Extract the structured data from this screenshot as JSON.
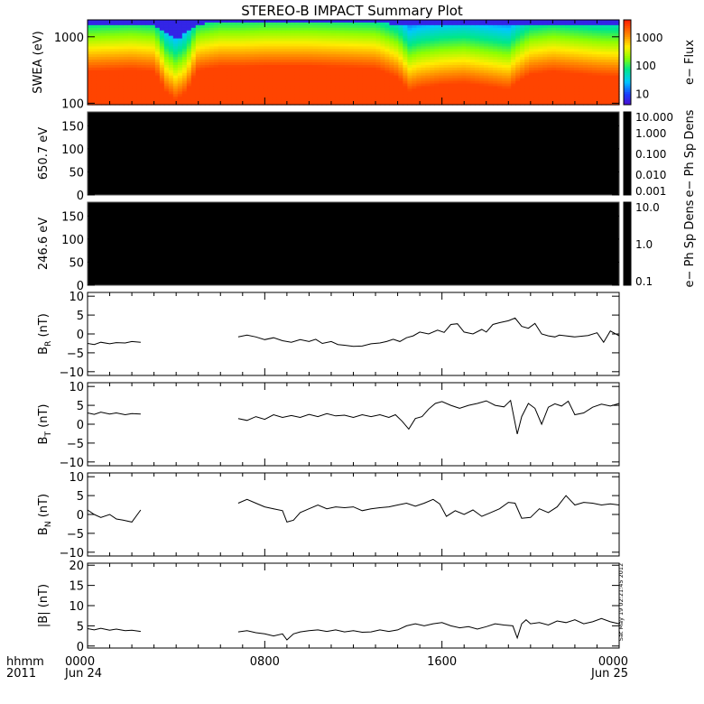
{
  "title": "STEREO-B IMPACT Summary Plot",
  "timestamp": "Sat May 19 02:21:45 2012",
  "time_axis": {
    "corner_label_top": "hhmm",
    "corner_label_bottom": "2011",
    "ticks": [
      {
        "hour": 0,
        "label": "0000",
        "date": "Jun 24"
      },
      {
        "hour": 8,
        "label": "0800",
        "date": ""
      },
      {
        "hour": 16,
        "label": "1600",
        "date": ""
      },
      {
        "hour": 24,
        "label": "0000",
        "date": "Jun 25"
      }
    ],
    "range_hours": [
      0,
      24
    ]
  },
  "colors": {
    "axes": "#000000",
    "trace": "#000000",
    "empty_panel": "#000000",
    "background": "#ffffff"
  },
  "chart_data": [
    {
      "type": "heatmap",
      "id": "swea",
      "ylabel": "SWEA (eV)",
      "y_scale": "log",
      "ylim": [
        95,
        1800
      ],
      "y_ticks": [
        {
          "value": 100,
          "label": "100"
        },
        {
          "value": 1000,
          "label": "1000"
        }
      ],
      "colorbar": {
        "label": "e− Flux",
        "scale": "log",
        "range": [
          4,
          4000
        ],
        "colormap": "rainbow",
        "ticks": [
          {
            "value": 10,
            "label": "10"
          },
          {
            "value": 100,
            "label": "100"
          },
          {
            "value": 1000,
            "label": "1000"
          }
        ]
      },
      "x": [
        0,
        1,
        2,
        3,
        3.5,
        4,
        4.5,
        5,
        6,
        7,
        8,
        9,
        10,
        11,
        12,
        13,
        14,
        14.5,
        15,
        16,
        17,
        18,
        19,
        20,
        21,
        22,
        23,
        24
      ],
      "hot_top_eV": [
        300,
        310,
        320,
        300,
        150,
        110,
        150,
        310,
        350,
        350,
        360,
        360,
        360,
        350,
        340,
        330,
        240,
        150,
        170,
        190,
        200,
        180,
        160,
        270,
        300,
        280,
        260,
        250
      ],
      "top_edge_eV": [
        1500,
        1520,
        1520,
        1480,
        1150,
        900,
        1150,
        1550,
        1600,
        1600,
        1600,
        1600,
        1600,
        1600,
        1600,
        1590,
        1560,
        1450,
        1480,
        1480,
        1500,
        1480,
        1450,
        1560,
        1560,
        1550,
        1540,
        1520
      ]
    },
    {
      "type": "heatmap",
      "id": "pad650",
      "ylabel": "650.7 eV",
      "ylim": [
        0,
        180
      ],
      "y_ticks": [
        {
          "value": 0,
          "label": "0"
        },
        {
          "value": 50,
          "label": "50"
        },
        {
          "value": 100,
          "label": "100"
        },
        {
          "value": 150,
          "label": "150"
        }
      ],
      "fill": "black",
      "colorbar": {
        "label": "e− Ph Sp Dens",
        "scale": "log",
        "range": [
          0.001,
          10
        ],
        "ticks": [
          {
            "value": 10,
            "label": "10.000"
          },
          {
            "value": 1,
            "label": "1.000"
          },
          {
            "value": 0.1,
            "label": "0.100"
          },
          {
            "value": 0.01,
            "label": "0.010"
          },
          {
            "value": 0.001,
            "label": "0.001"
          }
        ]
      }
    },
    {
      "type": "heatmap",
      "id": "pad246",
      "ylabel": "246.6 eV",
      "ylim": [
        0,
        180
      ],
      "y_ticks": [
        {
          "value": 0,
          "label": "0"
        },
        {
          "value": 50,
          "label": "50"
        },
        {
          "value": 100,
          "label": "100"
        },
        {
          "value": 150,
          "label": "150"
        }
      ],
      "fill": "black",
      "colorbar": {
        "label": "e− Ph Sp Dens",
        "scale": "log",
        "range": [
          0.1,
          10
        ],
        "ticks": [
          {
            "value": 10,
            "label": "10.0"
          },
          {
            "value": 1,
            "label": "1.0"
          },
          {
            "value": 0.1,
            "label": "0.1"
          }
        ]
      }
    },
    {
      "type": "line",
      "id": "br",
      "ylabel_main": "B",
      "ylabel_sub": "R",
      "ylabel_unit": "(nT)",
      "ylim": [
        -11,
        11
      ],
      "y_ticks": [
        {
          "value": -10,
          "label": "−10"
        },
        {
          "value": -5,
          "label": "−5"
        },
        {
          "value": 0,
          "label": "0"
        },
        {
          "value": 5,
          "label": "5"
        },
        {
          "value": 10,
          "label": "10"
        }
      ],
      "series": [
        {
          "x": [
            0,
            0.3,
            0.6,
            1.0,
            1.3,
            1.7,
            2.0,
            2.4
          ],
          "y": [
            -2.5,
            -2.8,
            -2.2,
            -2.6,
            -2.3,
            -2.4,
            -2.0,
            -2.2
          ]
        },
        {
          "x": [
            6.8,
            7.2,
            7.6,
            8.0,
            8.4,
            8.8,
            9.2,
            9.6,
            10.0,
            10.3,
            10.6,
            11.0,
            11.3,
            11.6,
            12.0,
            12.4,
            12.8,
            13.2,
            13.5,
            13.8,
            14.1,
            14.4,
            14.7,
            15.0,
            15.4,
            15.8,
            16.1,
            16.4,
            16.7,
            17.0,
            17.4,
            17.8,
            18.0,
            18.3,
            18.6,
            19.0,
            19.3,
            19.6,
            19.9,
            20.2,
            20.5,
            20.8,
            21.1,
            21.3,
            21.6,
            22.0,
            22.3,
            22.6,
            23.0,
            23.3,
            23.6,
            24.0
          ],
          "y": [
            -0.8,
            -0.3,
            -0.8,
            -1.5,
            -1.0,
            -1.8,
            -2.2,
            -1.5,
            -2.0,
            -1.4,
            -2.5,
            -2.0,
            -2.8,
            -3.0,
            -3.3,
            -3.2,
            -2.6,
            -2.4,
            -2.0,
            -1.4,
            -2.0,
            -1.0,
            -0.5,
            0.5,
            0.0,
            1.0,
            0.4,
            2.5,
            2.7,
            0.5,
            0.0,
            1.2,
            0.5,
            2.5,
            3.0,
            3.5,
            4.2,
            2.0,
            1.5,
            2.8,
            0.0,
            -0.5,
            -0.8,
            -0.3,
            -0.5,
            -0.8,
            -0.6,
            -0.4,
            0.3,
            -2.2,
            0.8,
            -0.5
          ]
        }
      ]
    },
    {
      "type": "line",
      "id": "bt",
      "ylabel_main": "B",
      "ylabel_sub": "T",
      "ylabel_unit": "(nT)",
      "ylim": [
        -11,
        11
      ],
      "y_ticks": [
        {
          "value": -10,
          "label": "−10"
        },
        {
          "value": -5,
          "label": "−5"
        },
        {
          "value": 0,
          "label": "0"
        },
        {
          "value": 5,
          "label": "5"
        },
        {
          "value": 10,
          "label": "10"
        }
      ],
      "series": [
        {
          "x": [
            0,
            0.3,
            0.6,
            1.0,
            1.3,
            1.7,
            2.0,
            2.4
          ],
          "y": [
            3.0,
            2.6,
            3.2,
            2.7,
            3.0,
            2.5,
            2.8,
            2.7
          ]
        },
        {
          "x": [
            6.8,
            7.2,
            7.6,
            8.0,
            8.4,
            8.8,
            9.2,
            9.6,
            10.0,
            10.4,
            10.8,
            11.2,
            11.6,
            12.0,
            12.4,
            12.8,
            13.2,
            13.6,
            13.9,
            14.2,
            14.5,
            14.8,
            15.1,
            15.4,
            15.7,
            16.0,
            16.4,
            16.8,
            17.2,
            17.6,
            18.0,
            18.4,
            18.8,
            19.1,
            19.4,
            19.6,
            19.9,
            20.2,
            20.5,
            20.8,
            21.1,
            21.4,
            21.7,
            22.0,
            22.4,
            22.8,
            23.2,
            23.6,
            24.0
          ],
          "y": [
            1.5,
            1.0,
            2.0,
            1.3,
            2.5,
            1.8,
            2.3,
            1.8,
            2.6,
            2.0,
            2.8,
            2.2,
            2.4,
            1.8,
            2.5,
            2.0,
            2.5,
            1.8,
            2.5,
            0.8,
            -1.3,
            1.5,
            2.0,
            4.0,
            5.5,
            6.0,
            5.0,
            4.2,
            5.0,
            5.5,
            6.2,
            5.0,
            4.6,
            6.3,
            -2.6,
            2.0,
            5.5,
            4.2,
            0.0,
            4.5,
            5.4,
            4.8,
            6.1,
            2.5,
            3.0,
            4.5,
            5.3,
            4.8,
            5.5
          ]
        }
      ]
    },
    {
      "type": "line",
      "id": "bn",
      "ylabel_main": "B",
      "ylabel_sub": "N",
      "ylabel_unit": "(nT)",
      "ylim": [
        -11,
        11
      ],
      "y_ticks": [
        {
          "value": -10,
          "label": "−10"
        },
        {
          "value": -5,
          "label": "−5"
        },
        {
          "value": 0,
          "label": "0"
        },
        {
          "value": 5,
          "label": "5"
        },
        {
          "value": 10,
          "label": "10"
        }
      ],
      "series": [
        {
          "x": [
            0,
            0.3,
            0.6,
            1.0,
            1.3,
            1.6,
            2.0,
            2.4
          ],
          "y": [
            1.2,
            0.0,
            -0.8,
            0.0,
            -1.2,
            -1.5,
            -2.0,
            1.2
          ]
        },
        {
          "x": [
            6.8,
            7.2,
            7.6,
            8.0,
            8.4,
            8.8,
            9.0,
            9.3,
            9.6,
            10.0,
            10.4,
            10.8,
            11.2,
            11.6,
            12.0,
            12.4,
            12.8,
            13.2,
            13.6,
            14.0,
            14.4,
            14.8,
            15.2,
            15.6,
            15.9,
            16.2,
            16.6,
            17.0,
            17.4,
            17.8,
            18.2,
            18.6,
            19.0,
            19.3,
            19.6,
            20.0,
            20.4,
            20.8,
            21.2,
            21.6,
            22.0,
            22.4,
            22.8,
            23.2,
            23.6,
            24.0
          ],
          "y": [
            3.0,
            4.0,
            3.0,
            2.0,
            1.5,
            1.0,
            -2.0,
            -1.5,
            0.5,
            1.5,
            2.5,
            1.5,
            2.0,
            1.8,
            2.0,
            1.0,
            1.5,
            1.8,
            2.0,
            2.5,
            3.0,
            2.2,
            3.0,
            4.0,
            2.8,
            -0.5,
            1.0,
            0.0,
            1.2,
            -0.5,
            0.5,
            1.5,
            3.2,
            3.0,
            -1.0,
            -0.8,
            1.5,
            0.5,
            2.0,
            5.0,
            2.5,
            3.2,
            3.0,
            2.5,
            2.8,
            2.5
          ]
        }
      ]
    },
    {
      "type": "line",
      "id": "bmag",
      "ylabel_main": "|B|",
      "ylabel_sub": "",
      "ylabel_unit": "(nT)",
      "ylim": [
        -0.5,
        20.5
      ],
      "y_ticks": [
        {
          "value": 0,
          "label": "0"
        },
        {
          "value": 5,
          "label": "5"
        },
        {
          "value": 10,
          "label": "10"
        },
        {
          "value": 15,
          "label": "15"
        },
        {
          "value": 20,
          "label": "20"
        }
      ],
      "series": [
        {
          "x": [
            0,
            0.3,
            0.6,
            1.0,
            1.3,
            1.7,
            2.0,
            2.4
          ],
          "y": [
            4.3,
            4.0,
            4.4,
            3.9,
            4.2,
            3.8,
            3.9,
            3.6
          ]
        },
        {
          "x": [
            6.8,
            7.2,
            7.6,
            8.0,
            8.4,
            8.8,
            9.0,
            9.3,
            9.6,
            10.0,
            10.4,
            10.8,
            11.2,
            11.6,
            12.0,
            12.4,
            12.8,
            13.2,
            13.6,
            14.0,
            14.4,
            14.8,
            15.2,
            15.6,
            16.0,
            16.4,
            16.8,
            17.2,
            17.6,
            18.0,
            18.4,
            18.8,
            19.2,
            19.4,
            19.6,
            19.8,
            20.0,
            20.4,
            20.8,
            21.2,
            21.6,
            22.0,
            22.4,
            22.8,
            23.2,
            23.6,
            24.0
          ],
          "y": [
            3.5,
            3.8,
            3.3,
            3.0,
            2.5,
            3.0,
            1.5,
            3.0,
            3.5,
            3.8,
            4.0,
            3.6,
            4.0,
            3.5,
            3.8,
            3.4,
            3.5,
            4.0,
            3.6,
            4.0,
            5.0,
            5.5,
            5.0,
            5.5,
            5.8,
            5.0,
            4.5,
            4.8,
            4.2,
            4.8,
            5.5,
            5.2,
            5.0,
            2.0,
            5.5,
            6.5,
            5.5,
            5.8,
            5.2,
            6.2,
            5.8,
            6.5,
            5.5,
            6.0,
            6.8,
            6.0,
            5.5
          ]
        }
      ]
    }
  ]
}
